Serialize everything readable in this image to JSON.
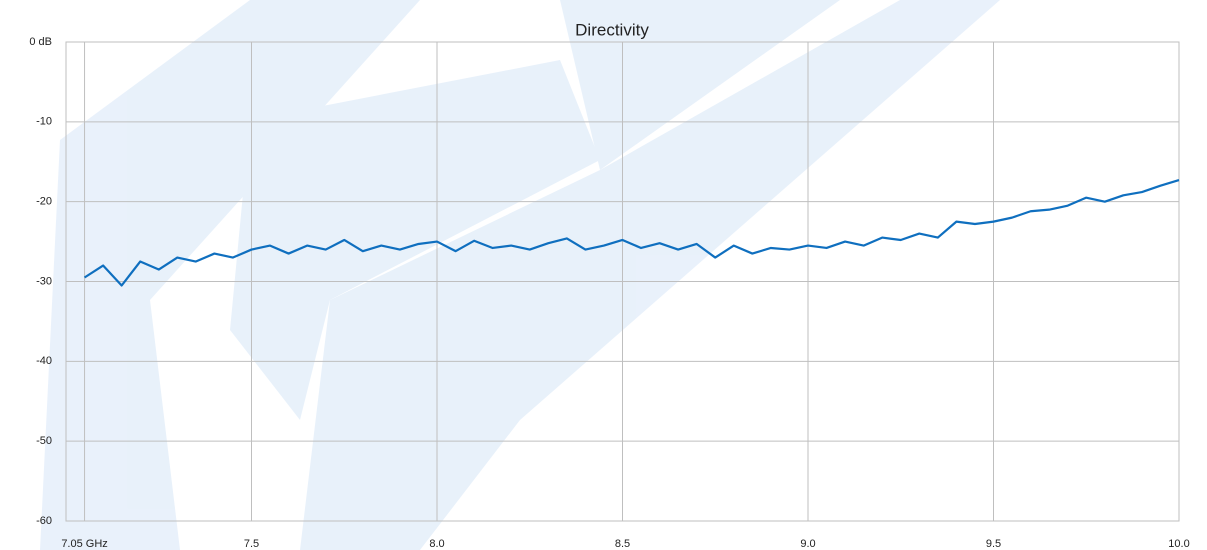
{
  "chart_data": {
    "type": "line",
    "title": "Directivity",
    "x": [
      7.05,
      7.1,
      7.15,
      7.2,
      7.25,
      7.3,
      7.35,
      7.4,
      7.45,
      7.5,
      7.55,
      7.6,
      7.65,
      7.7,
      7.75,
      7.8,
      7.85,
      7.9,
      7.95,
      8.0,
      8.05,
      8.1,
      8.15,
      8.2,
      8.25,
      8.3,
      8.35,
      8.4,
      8.45,
      8.5,
      8.55,
      8.6,
      8.65,
      8.7,
      8.75,
      8.8,
      8.85,
      8.9,
      8.95,
      9.0,
      9.05,
      9.1,
      9.15,
      9.2,
      9.25,
      9.3,
      9.35,
      9.4,
      9.45,
      9.5,
      9.55,
      9.6,
      9.65,
      9.7,
      9.75,
      9.8,
      9.85,
      9.9,
      9.95,
      10.0
    ],
    "values": [
      -29.5,
      -28.0,
      -30.5,
      -27.5,
      -28.5,
      -27.0,
      -27.5,
      -26.5,
      -27.0,
      -26.0,
      -25.5,
      -26.5,
      -25.5,
      -26.0,
      -24.8,
      -26.2,
      -25.5,
      -26.0,
      -25.3,
      -25.0,
      -26.2,
      -24.9,
      -25.8,
      -25.5,
      -26.0,
      -25.2,
      -24.6,
      -26.0,
      -25.5,
      -24.8,
      -25.8,
      -25.2,
      -26.0,
      -25.3,
      -27.0,
      -25.5,
      -26.5,
      -25.8,
      -26.0,
      -25.5,
      -25.8,
      -25.0,
      -25.5,
      -24.5,
      -24.8,
      -24.0,
      -24.5,
      -22.5,
      -22.8,
      -22.5,
      -22.0,
      -21.2,
      -21.0,
      -20.5,
      -19.5,
      -20.0,
      -19.2,
      -18.8,
      -18.0,
      -17.3
    ],
    "color": "#0f6fbf",
    "xlim": [
      7.0,
      10.0
    ],
    "xticks": [
      {
        "value": 7.05,
        "label": "7.05 GHz"
      },
      {
        "value": 7.5,
        "label": "7.5"
      },
      {
        "value": 8.0,
        "label": "8.0"
      },
      {
        "value": 8.5,
        "label": "8.5"
      },
      {
        "value": 9.0,
        "label": "9.0"
      },
      {
        "value": 9.5,
        "label": "9.5"
      },
      {
        "value": 10.0,
        "label": "10.0"
      }
    ],
    "ylim": [
      -60,
      0
    ],
    "yticks": [
      {
        "value": 0,
        "label": "0 dB"
      },
      -10,
      -20,
      -30,
      -40,
      -50,
      -60
    ],
    "grid": true
  }
}
